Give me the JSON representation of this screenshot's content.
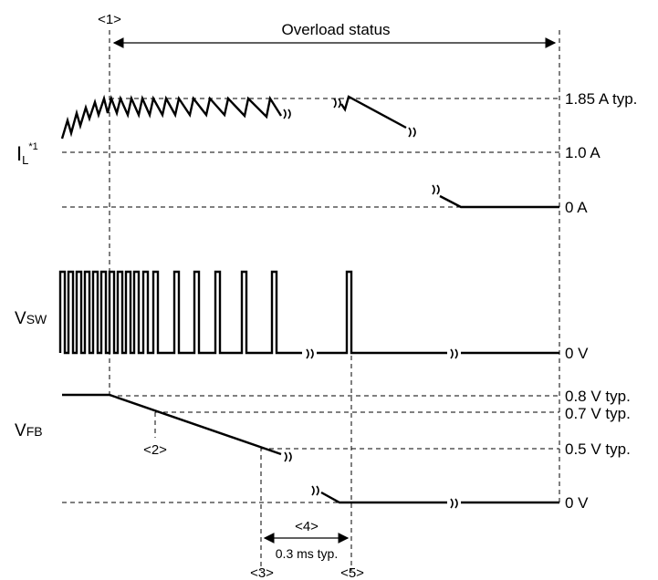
{
  "markers": {
    "m1": "<1>",
    "m2": "<2>",
    "m3": "<3>",
    "m4": "<4>",
    "m5": "<5>"
  },
  "overload_label": "Overload status",
  "interval_label": "0.3 ms typ.",
  "signals": {
    "il": {
      "name": "I",
      "sub": "L",
      "sup": "*1"
    },
    "vsw": {
      "name": "V",
      "sub": "SW"
    },
    "vfb": {
      "name": "V",
      "sub": "FB"
    }
  },
  "levels": {
    "il_peak": "1.85 A typ.",
    "il_mid": "1.0 A",
    "il_zero": "0 A",
    "vsw_zero": "0 V",
    "vfb_08": "0.8 V typ.",
    "vfb_07": "0.7 V typ.",
    "vfb_05": "0.5 V typ.",
    "vfb_zero": "0 V"
  }
}
